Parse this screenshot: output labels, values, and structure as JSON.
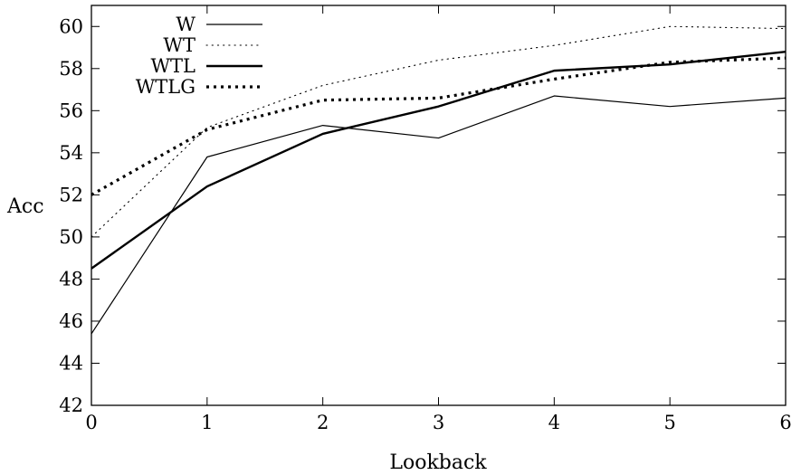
{
  "chart_data": {
    "type": "line",
    "xlabel": "Lookback",
    "ylabel": "Acc",
    "xlim": [
      0,
      6
    ],
    "ylim": [
      42,
      61
    ],
    "xticks": [
      0,
      1,
      2,
      3,
      4,
      5,
      6
    ],
    "yticks": [
      42,
      44,
      46,
      48,
      50,
      52,
      54,
      56,
      58,
      60
    ],
    "grid": false,
    "legend_position": "top-left",
    "x": [
      0,
      1,
      2,
      3,
      4,
      5,
      6
    ],
    "series": [
      {
        "name": "W",
        "style": "thin-solid",
        "values": [
          45.4,
          53.8,
          55.3,
          54.7,
          56.7,
          56.2,
          56.6
        ]
      },
      {
        "name": "WT",
        "style": "thin-dotted",
        "values": [
          50.0,
          55.2,
          57.2,
          58.4,
          59.1,
          60.0,
          59.9
        ]
      },
      {
        "name": "WTL",
        "style": "thick-solid",
        "values": [
          48.5,
          52.4,
          54.9,
          56.2,
          57.9,
          58.2,
          58.8
        ]
      },
      {
        "name": "WTLG",
        "style": "thick-dotted",
        "values": [
          52.0,
          55.1,
          56.5,
          56.6,
          57.5,
          58.3,
          58.5
        ]
      }
    ],
    "colors": {
      "line": "#000000",
      "frame": "#000000",
      "background": "#ffffff"
    }
  }
}
